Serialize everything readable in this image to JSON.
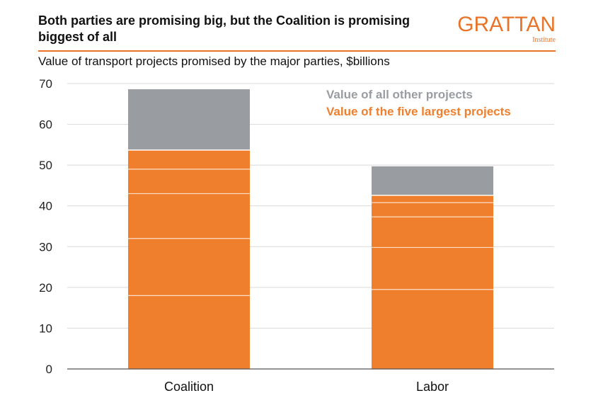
{
  "header": {
    "title": "Both parties are promising big, but the Coalition is promising biggest of all",
    "subtitle": "Value of transport projects promised by the major parties, $billions",
    "logo_main": "GRATTAN",
    "logo_sub": "Institute"
  },
  "chart_data": {
    "type": "bar",
    "stacked": true,
    "categories": [
      "Coalition",
      "Labor"
    ],
    "series": [
      {
        "name": "Value of the five largest projects",
        "values": [
          53.7,
          42.6
        ],
        "color": "#f07f2d",
        "segments": [
          [
            18,
            14,
            11,
            6,
            4.7
          ],
          [
            19.5,
            10.3,
            7.5,
            3.5,
            1.8
          ]
        ]
      },
      {
        "name": "Value of all other projects",
        "values": [
          14.9,
          7.1
        ],
        "color": "#999da2"
      }
    ],
    "ylim": [
      0,
      70
    ],
    "yticks": [
      0,
      10,
      20,
      30,
      40,
      50,
      60,
      70
    ],
    "legend_position": "top-right",
    "grid": true
  }
}
